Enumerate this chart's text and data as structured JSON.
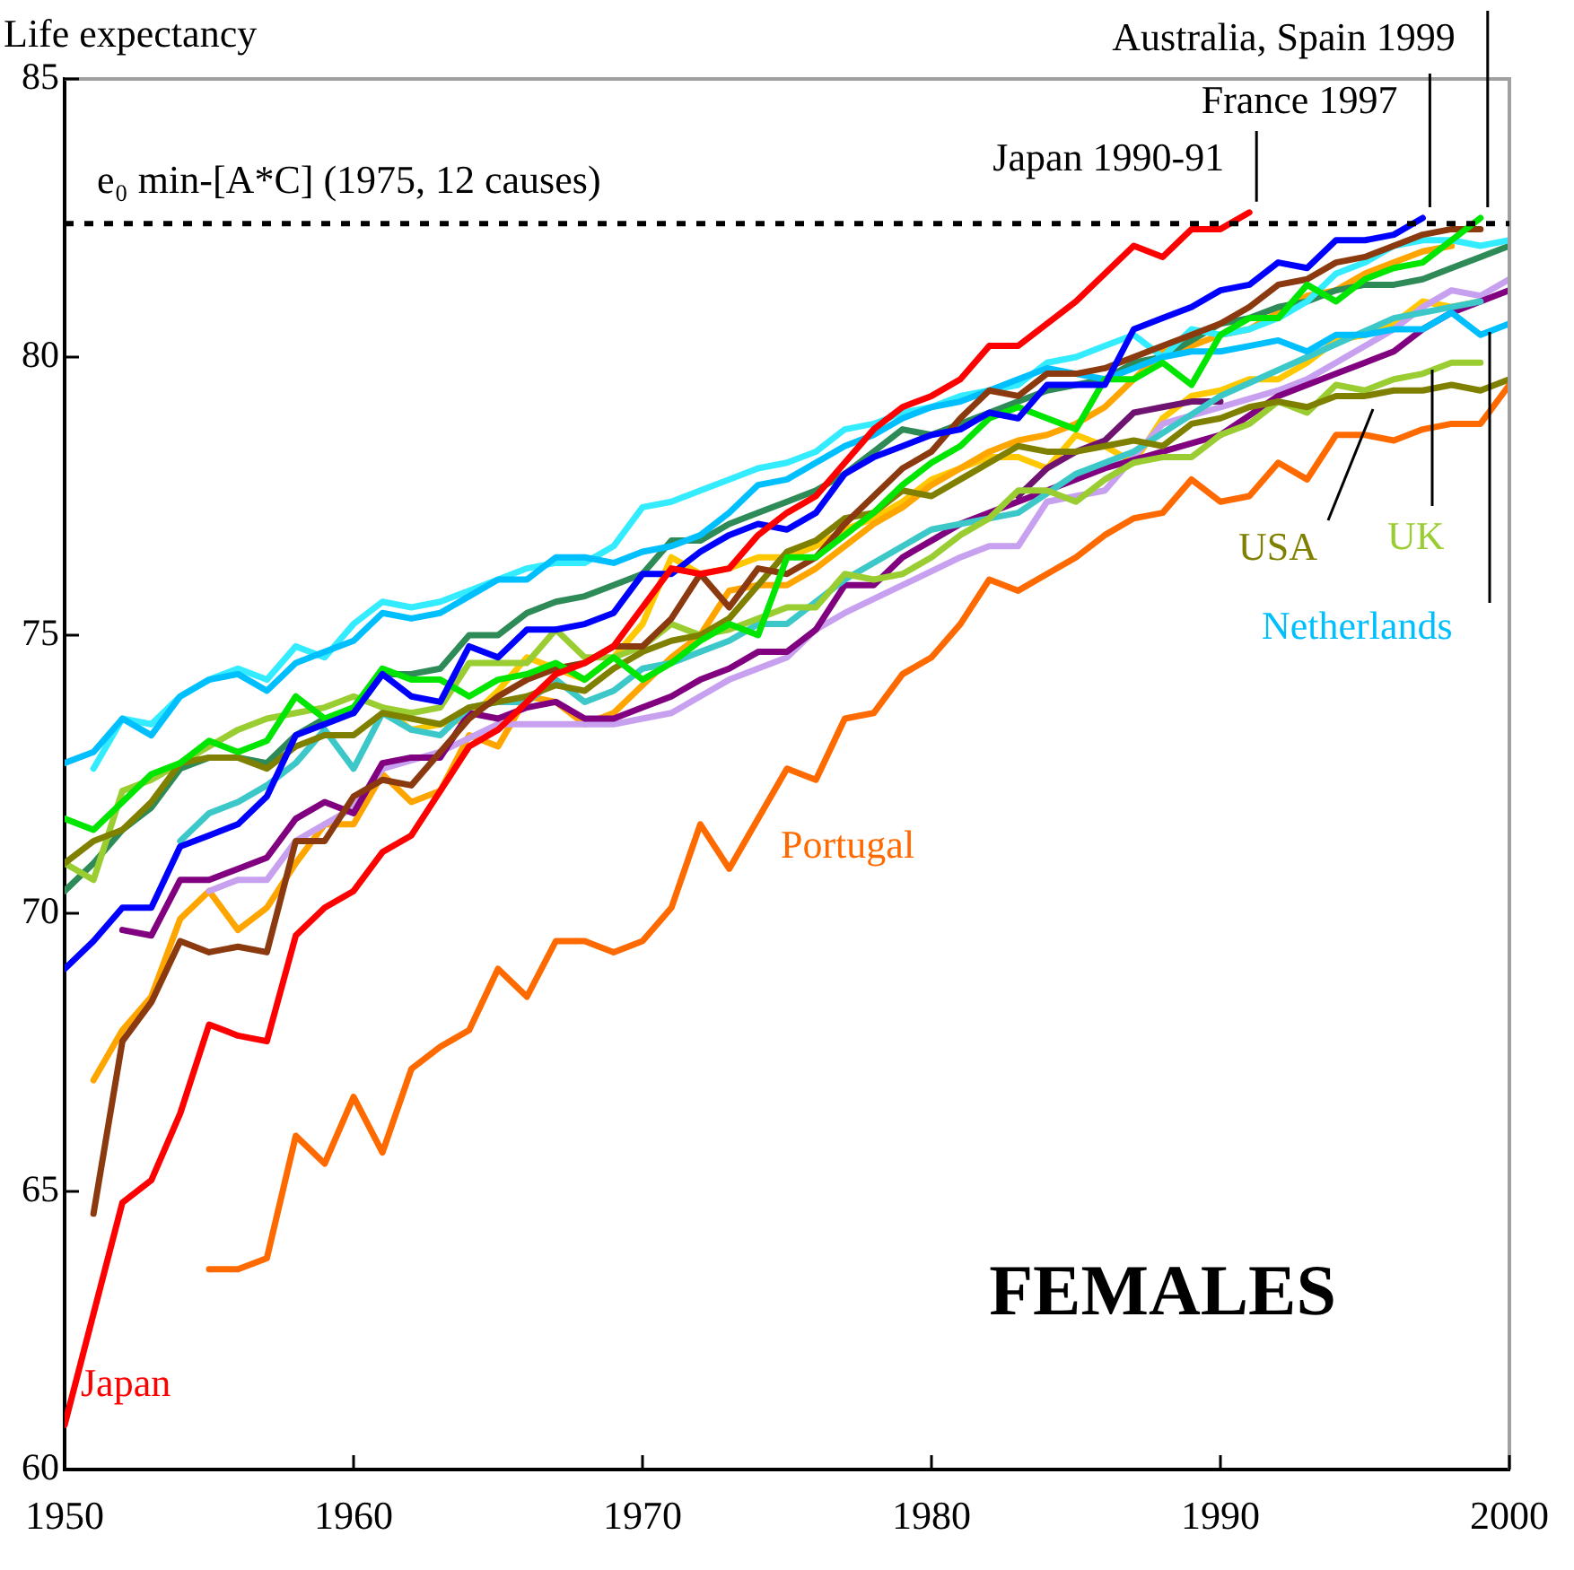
{
  "chart_data": {
    "type": "line",
    "ylabel": "Life expectancy",
    "xlim": [
      1950,
      2000
    ],
    "xticks": [
      1950,
      1960,
      1970,
      1980,
      1990,
      2000
    ],
    "ylim": [
      60,
      85
    ],
    "yticks": [
      60,
      65,
      70,
      75,
      80,
      85
    ],
    "grid": false,
    "legend": false,
    "marker": "none",
    "ref_lines": [
      {
        "axis": "y",
        "value": 82.4,
        "label": "e₀ min-[A*C] (1975, 12 causes)",
        "color": "#000000",
        "line_style": "dotted"
      }
    ],
    "annotations": [
      {
        "text": "Japan 1990-91",
        "x": 1991,
        "y": 82.6
      },
      {
        "text": "France 1997",
        "x": 1997,
        "y": 82.5
      },
      {
        "text": "Australia, Spain 1999",
        "x": 1999,
        "y": 82.5
      },
      "FEMALES"
    ],
    "series": [
      {
        "name": "Japan",
        "color": "#ff0000",
        "x": [
          1950,
          1951,
          1952,
          1953,
          1954,
          1955,
          1956,
          1957,
          1958,
          1959,
          1960,
          1961,
          1962,
          1963,
          1964,
          1965,
          1966,
          1967,
          1968,
          1969,
          1970,
          1971,
          1972,
          1973,
          1974,
          1975,
          1976,
          1977,
          1978,
          1979,
          1980,
          1981,
          1982,
          1983,
          1984,
          1985,
          1986,
          1987,
          1988,
          1989,
          1990,
          1991
        ],
        "values": [
          60.8,
          62.8,
          64.8,
          65.2,
          66.4,
          68.0,
          67.8,
          67.7,
          69.6,
          70.1,
          70.4,
          71.1,
          71.4,
          72.2,
          73.0,
          73.3,
          73.8,
          74.3,
          74.5,
          74.8,
          75.5,
          76.2,
          76.1,
          76.2,
          76.8,
          77.2,
          77.5,
          78.1,
          78.7,
          79.1,
          79.3,
          79.6,
          80.2,
          80.2,
          80.6,
          81.0,
          81.5,
          82.0,
          81.8,
          82.3,
          82.3,
          82.6
        ]
      },
      {
        "color": "#0000ff",
        "x": [
          1950,
          1951,
          1952,
          1953,
          1954,
          1955,
          1956,
          1957,
          1958,
          1959,
          1960,
          1961,
          1962,
          1963,
          1964,
          1965,
          1966,
          1967,
          1968,
          1969,
          1970,
          1971,
          1972,
          1973,
          1974,
          1975,
          1976,
          1977,
          1978,
          1979,
          1980,
          1981,
          1982,
          1983,
          1984,
          1985,
          1986,
          1987,
          1988,
          1989,
          1990,
          1991,
          1992,
          1993,
          1994,
          1995,
          1996,
          1997
        ],
        "values": [
          69.0,
          69.5,
          70.1,
          70.1,
          71.2,
          71.4,
          71.6,
          72.1,
          73.2,
          73.4,
          73.6,
          74.3,
          73.9,
          73.8,
          74.8,
          74.6,
          75.1,
          75.1,
          75.2,
          75.4,
          76.1,
          76.1,
          76.5,
          76.8,
          77.0,
          76.9,
          77.2,
          77.9,
          78.2,
          78.4,
          78.6,
          78.7,
          79.0,
          78.9,
          79.5,
          79.5,
          79.5,
          80.5,
          80.7,
          80.9,
          81.2,
          81.3,
          81.7,
          81.6,
          82.1,
          82.1,
          82.2,
          82.5
        ]
      },
      {
        "color": "#00e600",
        "x": [
          1950,
          1951,
          1952,
          1953,
          1954,
          1955,
          1956,
          1957,
          1958,
          1959,
          1960,
          1961,
          1962,
          1963,
          1964,
          1965,
          1966,
          1967,
          1968,
          1969,
          1970,
          1971,
          1972,
          1973,
          1974,
          1975,
          1976,
          1977,
          1978,
          1979,
          1980,
          1981,
          1982,
          1983,
          1984,
          1985,
          1986,
          1987,
          1988,
          1989,
          1990,
          1991,
          1992,
          1993,
          1994,
          1995,
          1996,
          1997,
          1998,
          1999
        ],
        "values": [
          71.7,
          71.5,
          72.0,
          72.5,
          72.7,
          73.1,
          72.9,
          73.1,
          73.9,
          73.5,
          73.7,
          74.4,
          74.2,
          74.2,
          73.9,
          74.2,
          74.3,
          74.5,
          74.2,
          74.6,
          74.2,
          74.5,
          74.9,
          75.2,
          75.0,
          76.4,
          76.4,
          76.8,
          77.2,
          77.7,
          78.1,
          78.4,
          78.9,
          79.1,
          78.9,
          78.7,
          79.6,
          79.6,
          79.9,
          79.5,
          80.4,
          80.7,
          80.7,
          81.3,
          81.0,
          81.4,
          81.6,
          81.7,
          82.1,
          82.5
        ]
      },
      {
        "color": "#8b3a0f",
        "x": [
          1951,
          1952,
          1953,
          1954,
          1955,
          1956,
          1957,
          1958,
          1959,
          1960,
          1961,
          1962,
          1963,
          1964,
          1965,
          1966,
          1967,
          1968,
          1969,
          1970,
          1971,
          1972,
          1973,
          1974,
          1975,
          1976,
          1977,
          1978,
          1979,
          1980,
          1981,
          1982,
          1983,
          1984,
          1985,
          1986,
          1987,
          1988,
          1989,
          1990,
          1991,
          1992,
          1993,
          1994,
          1995,
          1996,
          1997,
          1998,
          1999
        ],
        "values": [
          64.6,
          67.7,
          68.4,
          69.5,
          69.3,
          69.4,
          69.3,
          71.3,
          71.3,
          72.1,
          72.4,
          72.3,
          72.9,
          73.5,
          73.9,
          74.2,
          74.4,
          74.5,
          74.8,
          74.8,
          75.3,
          76.1,
          75.5,
          76.2,
          76.1,
          76.4,
          77.0,
          77.5,
          78.0,
          78.3,
          78.9,
          79.4,
          79.3,
          79.7,
          79.7,
          79.8,
          80.0,
          80.2,
          80.4,
          80.6,
          80.9,
          81.3,
          81.4,
          81.7,
          81.8,
          82.0,
          82.2,
          82.3,
          82.3
        ]
      },
      {
        "name": "Portugal",
        "color": "#ff6a00",
        "x": [
          1955,
          1956,
          1957,
          1958,
          1959,
          1960,
          1961,
          1962,
          1963,
          1964,
          1965,
          1966,
          1967,
          1968,
          1969,
          1970,
          1971,
          1972,
          1973,
          1974,
          1975,
          1976,
          1977,
          1978,
          1979,
          1980,
          1981,
          1982,
          1983,
          1984,
          1985,
          1986,
          1987,
          1988,
          1989,
          1990,
          1991,
          1992,
          1993,
          1994,
          1995,
          1996,
          1997,
          1998,
          1999,
          2000
        ],
        "values": [
          63.6,
          63.6,
          63.8,
          66.0,
          65.5,
          66.7,
          65.7,
          67.2,
          67.6,
          67.9,
          69.0,
          68.5,
          69.5,
          69.5,
          69.3,
          69.5,
          70.1,
          71.6,
          70.8,
          71.7,
          72.6,
          72.4,
          73.5,
          73.6,
          74.3,
          74.6,
          75.2,
          76.0,
          75.8,
          76.1,
          76.4,
          76.8,
          77.1,
          77.2,
          77.8,
          77.4,
          77.5,
          78.1,
          77.8,
          78.6,
          78.6,
          78.5,
          78.7,
          78.8,
          78.8,
          79.5
        ]
      },
      {
        "name": "USA",
        "color": "#808000",
        "x": [
          1950,
          1951,
          1952,
          1953,
          1954,
          1955,
          1956,
          1957,
          1958,
          1959,
          1960,
          1961,
          1962,
          1963,
          1964,
          1965,
          1966,
          1967,
          1968,
          1969,
          1970,
          1971,
          1972,
          1973,
          1974,
          1975,
          1976,
          1977,
          1978,
          1979,
          1980,
          1981,
          1982,
          1983,
          1984,
          1985,
          1986,
          1987,
          1988,
          1989,
          1990,
          1991,
          1992,
          1993,
          1994,
          1995,
          1996,
          1997,
          1998,
          1999,
          2000
        ],
        "values": [
          70.9,
          71.3,
          71.5,
          72.0,
          72.7,
          72.8,
          72.8,
          72.6,
          73.0,
          73.2,
          73.2,
          73.6,
          73.5,
          73.4,
          73.7,
          73.8,
          73.9,
          74.1,
          74.0,
          74.4,
          74.7,
          74.9,
          75.0,
          75.3,
          75.9,
          76.5,
          76.7,
          77.1,
          77.2,
          77.6,
          77.5,
          77.8,
          78.1,
          78.4,
          78.3,
          78.3,
          78.4,
          78.5,
          78.4,
          78.8,
          78.9,
          79.1,
          79.2,
          79.1,
          79.3,
          79.3,
          79.4,
          79.4,
          79.5,
          79.4,
          79.6
        ]
      },
      {
        "name": "UK",
        "color": "#9acd32",
        "x": [
          1950,
          1951,
          1952,
          1953,
          1954,
          1955,
          1956,
          1957,
          1958,
          1959,
          1960,
          1961,
          1962,
          1963,
          1964,
          1965,
          1966,
          1967,
          1968,
          1969,
          1970,
          1971,
          1972,
          1973,
          1974,
          1975,
          1976,
          1977,
          1978,
          1979,
          1980,
          1981,
          1982,
          1983,
          1984,
          1985,
          1986,
          1987,
          1988,
          1989,
          1990,
          1991,
          1992,
          1993,
          1994,
          1995,
          1996,
          1997,
          1998,
          1999
        ],
        "values": [
          70.9,
          70.6,
          72.2,
          72.4,
          72.7,
          73.0,
          73.3,
          73.5,
          73.6,
          73.7,
          73.9,
          73.7,
          73.6,
          73.7,
          74.5,
          74.5,
          74.5,
          75.1,
          74.6,
          74.6,
          74.8,
          75.2,
          75.0,
          75.1,
          75.3,
          75.5,
          75.5,
          76.1,
          76.0,
          76.1,
          76.4,
          76.8,
          77.1,
          77.6,
          77.6,
          77.4,
          77.8,
          78.1,
          78.2,
          78.2,
          78.6,
          78.8,
          79.2,
          79.0,
          79.5,
          79.4,
          79.6,
          79.7,
          79.9,
          79.9
        ]
      },
      {
        "name": "Netherlands",
        "color": "#00bfff",
        "x": [
          1950,
          1951,
          1952,
          1953,
          1954,
          1955,
          1956,
          1957,
          1958,
          1959,
          1960,
          1961,
          1962,
          1963,
          1964,
          1965,
          1966,
          1967,
          1968,
          1969,
          1970,
          1971,
          1972,
          1973,
          1974,
          1975,
          1976,
          1977,
          1978,
          1979,
          1980,
          1981,
          1982,
          1983,
          1984,
          1985,
          1986,
          1987,
          1988,
          1989,
          1990,
          1991,
          1992,
          1993,
          1994,
          1995,
          1996,
          1997,
          1998,
          1999,
          2000
        ],
        "values": [
          72.7,
          72.9,
          73.5,
          73.2,
          73.9,
          74.2,
          74.3,
          74.0,
          74.5,
          74.7,
          74.9,
          75.4,
          75.3,
          75.4,
          75.7,
          76.0,
          76.0,
          76.4,
          76.4,
          76.3,
          76.5,
          76.6,
          76.8,
          77.2,
          77.7,
          77.8,
          78.1,
          78.4,
          78.6,
          78.9,
          79.1,
          79.2,
          79.4,
          79.6,
          79.8,
          79.7,
          79.6,
          79.8,
          80.0,
          80.1,
          80.1,
          80.2,
          80.3,
          80.1,
          80.4,
          80.4,
          80.5,
          80.5,
          80.8,
          80.4,
          80.6
        ]
      },
      {
        "color": "#33ecff",
        "x": [
          1951,
          1952,
          1953,
          1954,
          1955,
          1956,
          1957,
          1958,
          1959,
          1960,
          1961,
          1962,
          1963,
          1964,
          1965,
          1966,
          1967,
          1968,
          1969,
          1970,
          1971,
          1972,
          1973,
          1974,
          1975,
          1976,
          1977,
          1978,
          1979,
          1980,
          1981,
          1982,
          1983,
          1984,
          1985,
          1986,
          1987,
          1988,
          1989,
          1990,
          1991,
          1992,
          1993,
          1994,
          1995,
          1996,
          1997,
          1998,
          1999,
          2000
        ],
        "values": [
          72.6,
          73.5,
          73.4,
          73.9,
          74.2,
          74.4,
          74.2,
          74.8,
          74.6,
          75.2,
          75.6,
          75.5,
          75.6,
          75.8,
          76.0,
          76.2,
          76.3,
          76.3,
          76.6,
          77.3,
          77.4,
          77.6,
          77.8,
          78.0,
          78.1,
          78.3,
          78.7,
          78.8,
          79.0,
          79.1,
          79.3,
          79.4,
          79.5,
          79.9,
          80.0,
          80.2,
          80.4,
          80.0,
          80.5,
          80.4,
          80.5,
          80.7,
          81.0,
          81.5,
          81.7,
          82.0,
          82.1,
          82.1,
          82.0,
          82.1
        ]
      },
      {
        "color": "#2e8b57",
        "x": [
          1950,
          1951,
          1952,
          1953,
          1954,
          1955,
          1956,
          1957,
          1958,
          1959,
          1960,
          1961,
          1962,
          1963,
          1964,
          1965,
          1966,
          1967,
          1968,
          1969,
          1970,
          1971,
          1972,
          1973,
          1974,
          1975,
          1976,
          1977,
          1978,
          1979,
          1980,
          1981,
          1982,
          1983,
          1984,
          1985,
          1986,
          1987,
          1988,
          1989,
          1990,
          1991,
          1992,
          1993,
          1994,
          1995,
          1996,
          1997,
          1998,
          1999,
          2000
        ],
        "values": [
          70.4,
          70.9,
          71.5,
          71.9,
          72.6,
          72.8,
          72.8,
          72.7,
          73.2,
          73.5,
          73.6,
          74.3,
          74.3,
          74.4,
          75.0,
          75.0,
          75.4,
          75.6,
          75.7,
          75.9,
          76.1,
          76.7,
          76.7,
          77.0,
          77.2,
          77.4,
          77.6,
          77.9,
          78.3,
          78.7,
          78.6,
          78.8,
          79.0,
          79.2,
          79.4,
          79.5,
          79.6,
          79.9,
          80.0,
          80.3,
          80.6,
          80.7,
          80.9,
          81.0,
          81.2,
          81.3,
          81.3,
          81.4,
          81.6,
          81.8,
          82.0
        ]
      },
      {
        "color": "#3cc8c8",
        "x": [
          1954,
          1955,
          1956,
          1957,
          1958,
          1959,
          1960,
          1961,
          1962,
          1963,
          1964,
          1965,
          1966,
          1967,
          1968,
          1969,
          1970,
          1971,
          1972,
          1973,
          1974,
          1975,
          1977,
          1980,
          1983,
          1985,
          1987,
          1990,
          1993,
          1996,
          1999
        ],
        "values": [
          71.3,
          71.8,
          72.0,
          72.3,
          72.7,
          73.3,
          72.6,
          73.6,
          73.3,
          73.2,
          73.7,
          73.8,
          73.8,
          74.2,
          73.8,
          74.0,
          74.4,
          74.5,
          74.7,
          74.9,
          75.2,
          75.2,
          76.0,
          76.9,
          77.2,
          77.9,
          78.3,
          79.3,
          80.0,
          80.7,
          81.0
        ]
      },
      {
        "color": "#800080",
        "x": [
          1952,
          1953,
          1954,
          1955,
          1956,
          1957,
          1958,
          1959,
          1960,
          1961,
          1962,
          1963,
          1964,
          1965,
          1966,
          1967,
          1968,
          1969,
          1970,
          1971,
          1972,
          1973,
          1974,
          1975,
          1976,
          1977,
          1978,
          1979,
          1980,
          1981,
          1982,
          1984,
          1986,
          1988,
          1990,
          1992,
          1993,
          1994,
          1995,
          1996,
          1997,
          1998,
          1999,
          2000
        ],
        "values": [
          69.7,
          69.6,
          70.6,
          70.6,
          70.8,
          71.0,
          71.7,
          72.0,
          71.8,
          72.7,
          72.8,
          72.8,
          73.6,
          73.5,
          73.7,
          73.8,
          73.5,
          73.5,
          73.7,
          73.9,
          74.2,
          74.4,
          74.7,
          74.7,
          75.1,
          75.9,
          75.9,
          76.4,
          76.7,
          77.0,
          77.2,
          77.6,
          78.0,
          78.3,
          78.6,
          79.3,
          79.5,
          79.7,
          79.9,
          80.1,
          80.5,
          80.8,
          81.0,
          81.2
        ]
      },
      {
        "color": "#6e1470",
        "x": [
          1983,
          1984,
          1985,
          1986,
          1987,
          1988,
          1989,
          1990
        ],
        "values": [
          77.5,
          78.0,
          78.3,
          78.5,
          79.0,
          79.1,
          79.2,
          79.2
        ]
      },
      {
        "color": "#c8a0f0",
        "x": [
          1955,
          1956,
          1957,
          1958,
          1960,
          1961,
          1963,
          1965,
          1968,
          1969,
          1971,
          1973,
          1975,
          1976,
          1977,
          1979,
          1981,
          1982,
          1983,
          1984,
          1986,
          1987,
          1988,
          1990,
          1992,
          1993,
          1994,
          1996,
          1997,
          1998,
          1999,
          2000
        ],
        "values": [
          70.4,
          70.6,
          70.6,
          71.3,
          71.9,
          72.6,
          72.9,
          73.4,
          73.4,
          73.4,
          73.6,
          74.2,
          74.6,
          75.1,
          75.4,
          75.9,
          76.4,
          76.6,
          76.6,
          77.4,
          77.6,
          78.2,
          78.8,
          79.1,
          79.4,
          79.6,
          79.9,
          80.5,
          80.9,
          81.2,
          81.1,
          81.4
        ]
      },
      {
        "color": "#ffa500",
        "x": [
          1951,
          1952,
          1953,
          1954,
          1955,
          1956,
          1957,
          1958,
          1959,
          1960,
          1961,
          1962,
          1963,
          1964,
          1965,
          1966,
          1967,
          1968,
          1969,
          1970,
          1971,
          1972,
          1973,
          1974,
          1975,
          1976,
          1977,
          1978,
          1979,
          1980,
          1981,
          1982,
          1983,
          1984,
          1985,
          1986,
          1987,
          1988,
          1989,
          1990,
          1991,
          1992,
          1993,
          1994,
          1995,
          1996,
          1997,
          1998
        ],
        "values": [
          67.0,
          67.9,
          68.5,
          69.9,
          70.4,
          69.7,
          70.1,
          70.9,
          71.6,
          71.6,
          72.5,
          72.0,
          72.2,
          73.2,
          73.0,
          73.9,
          73.8,
          73.4,
          73.6,
          74.1,
          74.6,
          75.0,
          75.8,
          75.9,
          75.9,
          76.2,
          76.6,
          77.0,
          77.3,
          77.7,
          78.0,
          78.3,
          78.5,
          78.6,
          78.8,
          79.1,
          79.6,
          80.1,
          80.2,
          80.4,
          80.5,
          80.8,
          81.1,
          81.2,
          81.5,
          81.7,
          81.9,
          82.0
        ]
      },
      {
        "color": "#ffc800",
        "x": [
          1961,
          1962,
          1963,
          1964,
          1965,
          1966,
          1967,
          1968,
          1969,
          1970,
          1971,
          1972,
          1973,
          1974,
          1975,
          1976,
          1977,
          1978,
          1979,
          1980,
          1981,
          1982,
          1983,
          1984,
          1985,
          1986,
          1987,
          1988,
          1989,
          1990,
          1991,
          1992,
          1993,
          1994,
          1995,
          1996,
          1997,
          1998,
          1999
        ],
        "values": [
          73.7,
          73.3,
          73.4,
          73.5,
          74.0,
          74.6,
          74.4,
          74.2,
          74.6,
          75.2,
          76.4,
          76.1,
          76.2,
          76.4,
          76.4,
          76.6,
          76.9,
          77.1,
          77.4,
          77.8,
          78.0,
          78.2,
          78.2,
          78.0,
          78.6,
          78.4,
          78.1,
          78.9,
          79.3,
          79.4,
          79.6,
          79.6,
          79.9,
          80.3,
          80.4,
          80.6,
          81.0,
          80.9,
          81.0
        ]
      }
    ]
  }
}
